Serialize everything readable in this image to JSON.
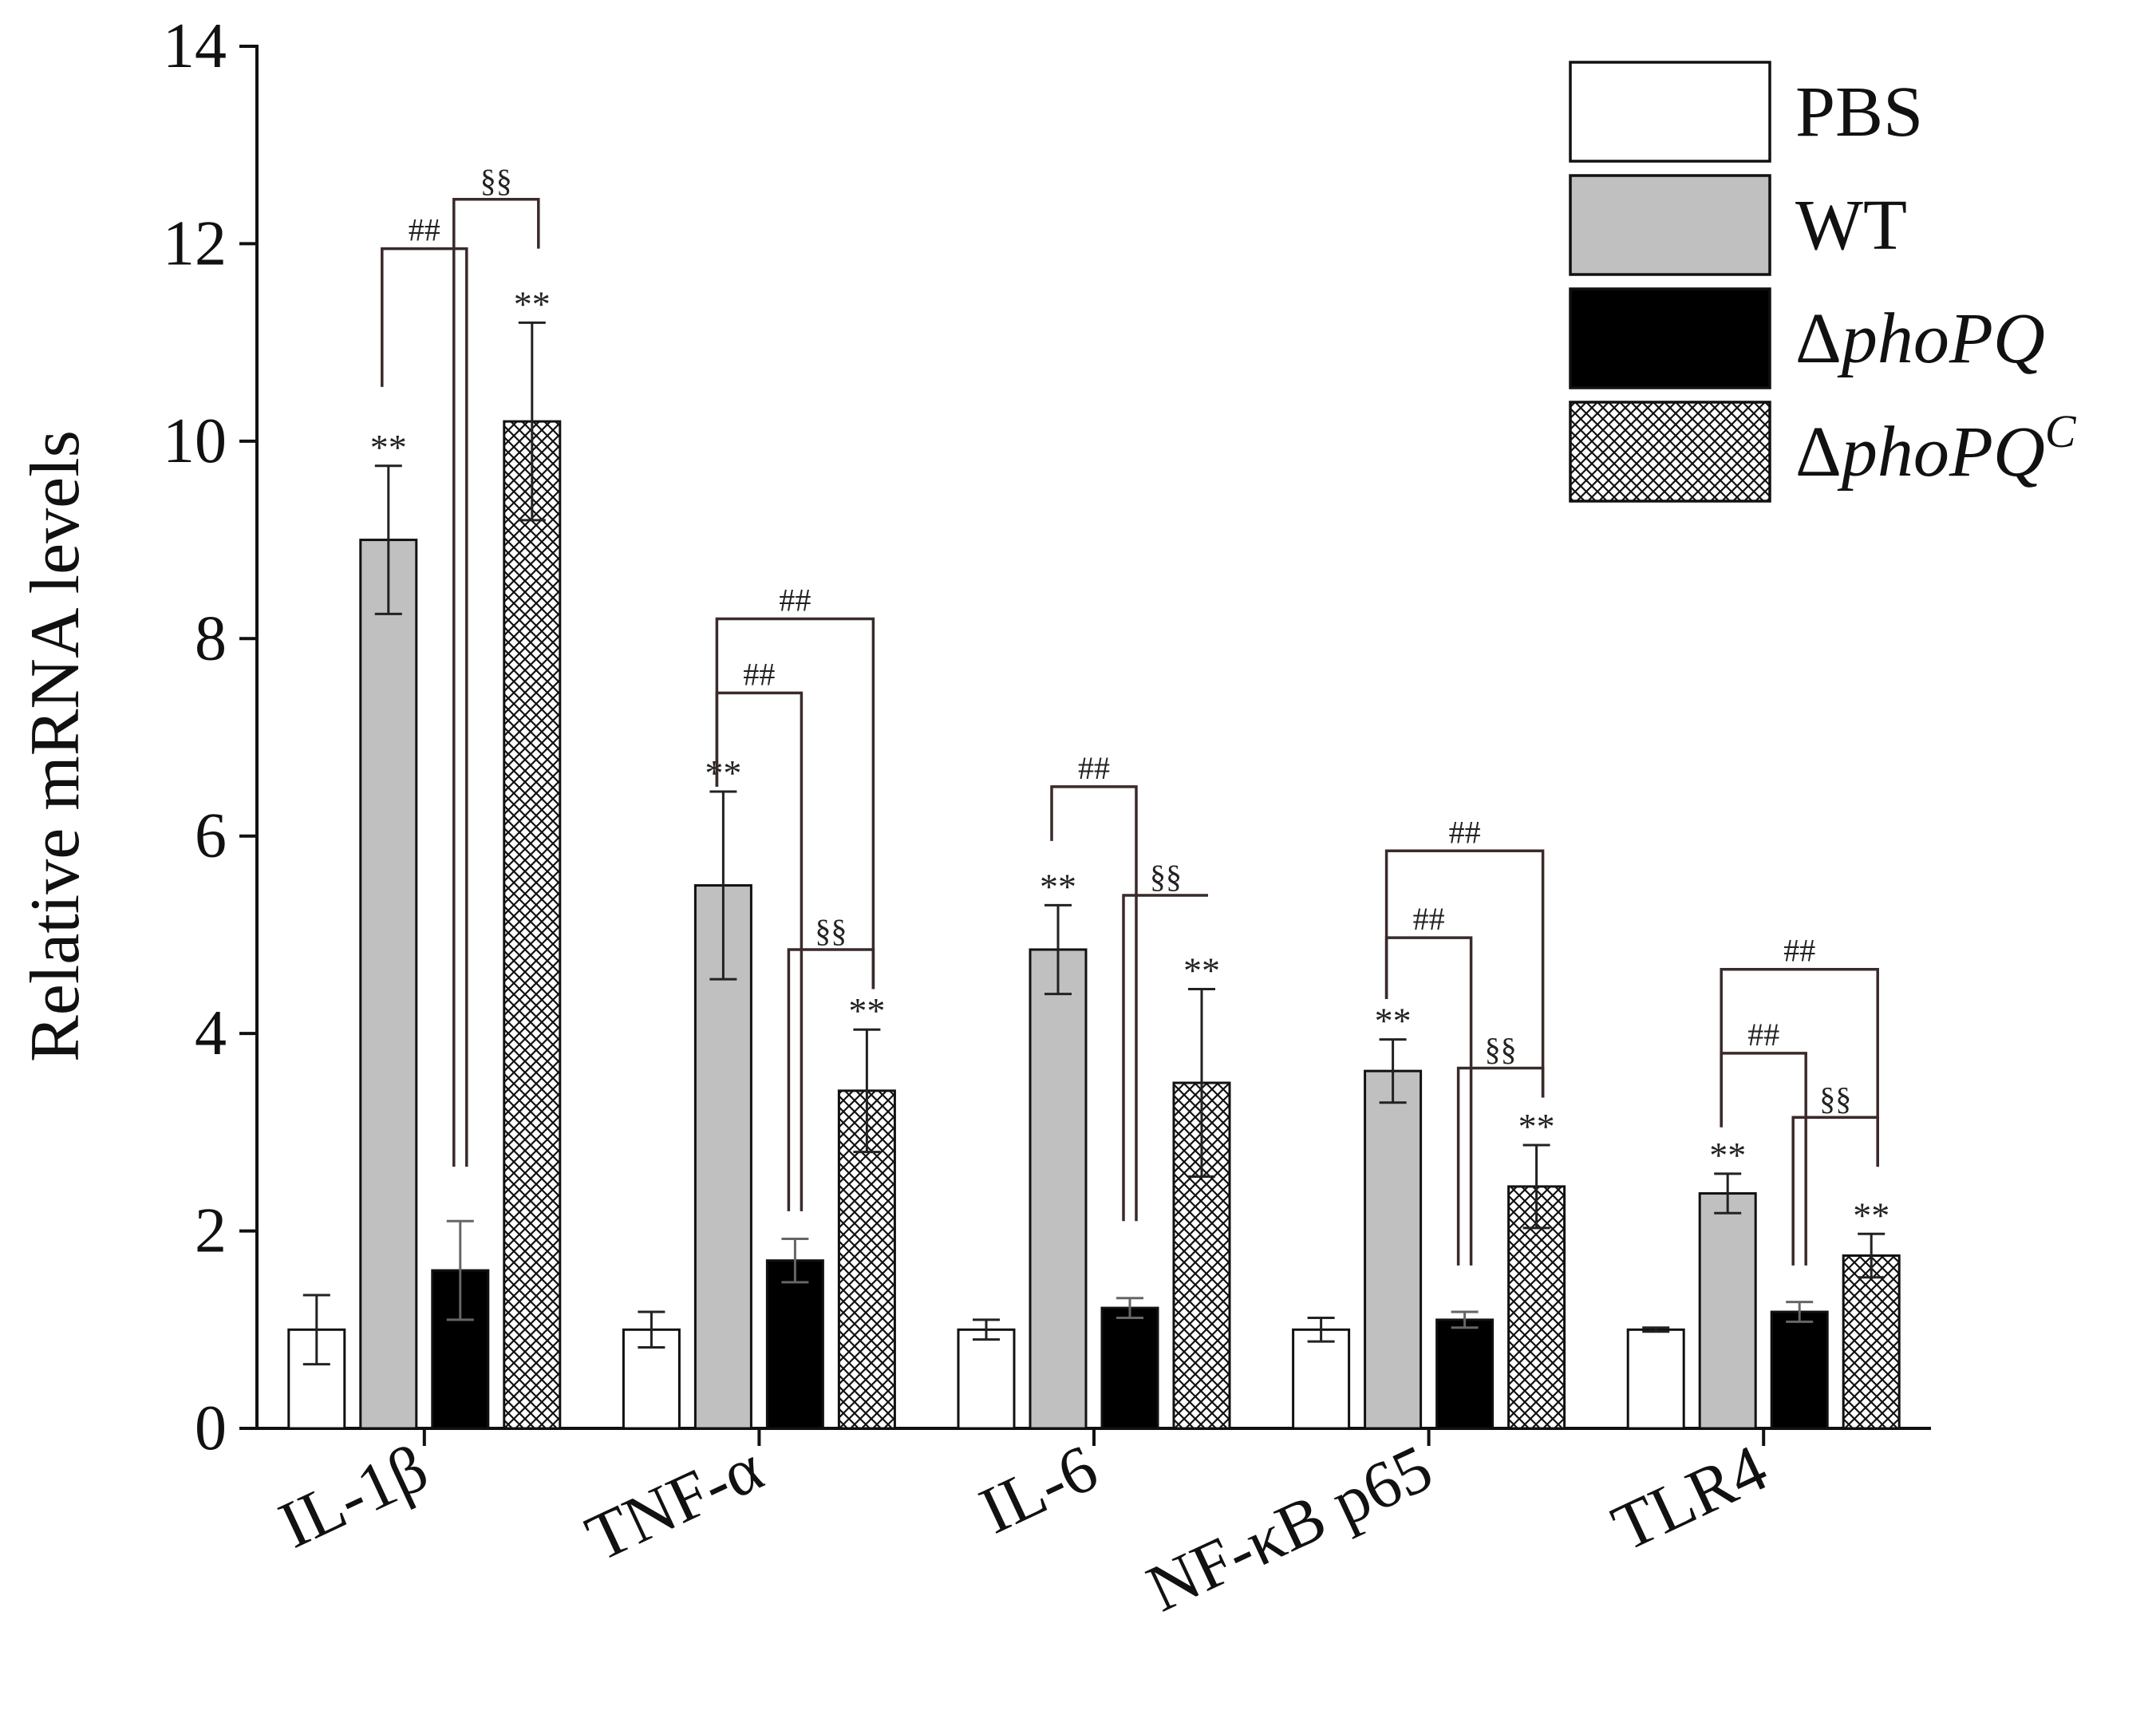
{
  "chart_data": {
    "type": "bar",
    "title": "",
    "xlabel": "",
    "ylabel": "Relative mRNA levels",
    "ylim": [
      0,
      14
    ],
    "yticks": [
      0,
      2,
      4,
      6,
      8,
      10,
      12,
      14
    ],
    "grid": false,
    "legend_position": "top-right",
    "categories": [
      "IL-1β",
      "TNF-α",
      "IL-6",
      "NF-κB p65",
      "TLR4"
    ],
    "series": [
      {
        "name": "PBS",
        "legend_prefix": "",
        "legend_main": "PBS",
        "legend_sup": "",
        "fill": "white",
        "values": [
          1.0,
          1.0,
          1.0,
          1.0,
          1.0
        ],
        "errors": [
          0.35,
          0.18,
          0.1,
          0.12,
          0.02
        ]
      },
      {
        "name": "WT",
        "legend_prefix": "",
        "legend_main": "WT",
        "legend_sup": "",
        "fill": "gray",
        "values": [
          9.0,
          5.5,
          4.85,
          3.62,
          2.38
        ],
        "errors": [
          0.75,
          0.95,
          0.45,
          0.32,
          0.2
        ]
      },
      {
        "name": "ΔphoPQ",
        "legend_prefix": "Δ",
        "legend_main": "phoPQ",
        "legend_sup": "",
        "fill": "black",
        "values": [
          1.6,
          1.7,
          1.22,
          1.1,
          1.18
        ],
        "errors": [
          0.5,
          0.22,
          0.1,
          0.08,
          0.1
        ]
      },
      {
        "name": "ΔphoPQC",
        "legend_prefix": "Δ",
        "legend_main": "phoPQ",
        "legend_sup": "C",
        "fill": "crosshatch",
        "values": [
          10.2,
          3.42,
          3.5,
          2.45,
          1.75
        ],
        "errors": [
          1.0,
          0.62,
          0.95,
          0.42,
          0.22
        ]
      }
    ],
    "star_label": "**",
    "star_marks": [
      {
        "group": 0,
        "series": 1
      },
      {
        "group": 0,
        "series": 3
      },
      {
        "group": 1,
        "series": 1
      },
      {
        "group": 1,
        "series": 3
      },
      {
        "group": 2,
        "series": 1
      },
      {
        "group": 2,
        "series": 3
      },
      {
        "group": 3,
        "series": 1
      },
      {
        "group": 3,
        "series": 3
      },
      {
        "group": 4,
        "series": 1
      },
      {
        "group": 4,
        "series": 3
      }
    ],
    "brackets": [
      {
        "group": 0,
        "from": 1,
        "to": 2,
        "label": "##",
        "top": 11.95,
        "left_end": 10.55,
        "right_end": 2.65
      },
      {
        "group": 0,
        "from": 2,
        "to": 3,
        "label": "§§",
        "top": 12.45,
        "left_end": 2.65,
        "right_end": 11.95
      },
      {
        "group": 1,
        "from": 1,
        "to": 3,
        "label": "##",
        "top": 8.2,
        "left_end": 6.5,
        "right_end": 4.45
      },
      {
        "group": 1,
        "from": 1,
        "to": 2,
        "label": "##",
        "top": 7.45,
        "left_end": 6.5,
        "right_end": 2.2
      },
      {
        "group": 1,
        "from": 2,
        "to": 3,
        "label": "§§",
        "top": 4.85,
        "left_end": 2.2,
        "right_end": 4.45
      },
      {
        "group": 2,
        "from": 1,
        "to": 2,
        "label": "##",
        "top": 6.5,
        "left_end": 5.95,
        "right_end": 2.1
      },
      {
        "group": 2,
        "from": 2,
        "to": 3,
        "label": "§§",
        "top": 5.4,
        "left_end": 2.1,
        "right_end": 5.4
      },
      {
        "group": 3,
        "from": 1,
        "to": 3,
        "label": "##",
        "top": 5.85,
        "left_end": 4.35,
        "right_end": 3.35
      },
      {
        "group": 3,
        "from": 1,
        "to": 2,
        "label": "##",
        "top": 4.97,
        "left_end": 4.35,
        "right_end": 1.65
      },
      {
        "group": 3,
        "from": 2,
        "to": 3,
        "label": "§§",
        "top": 3.65,
        "left_end": 1.65,
        "right_end": 3.35
      },
      {
        "group": 4,
        "from": 1,
        "to": 3,
        "label": "##",
        "top": 4.65,
        "left_end": 3.05,
        "right_end": 2.65
      },
      {
        "group": 4,
        "from": 1,
        "to": 2,
        "label": "##",
        "top": 3.8,
        "left_end": 3.05,
        "right_end": 1.65
      },
      {
        "group": 4,
        "from": 2,
        "to": 3,
        "label": "§§",
        "top": 3.15,
        "left_end": 1.65,
        "right_end": 2.65
      }
    ]
  }
}
